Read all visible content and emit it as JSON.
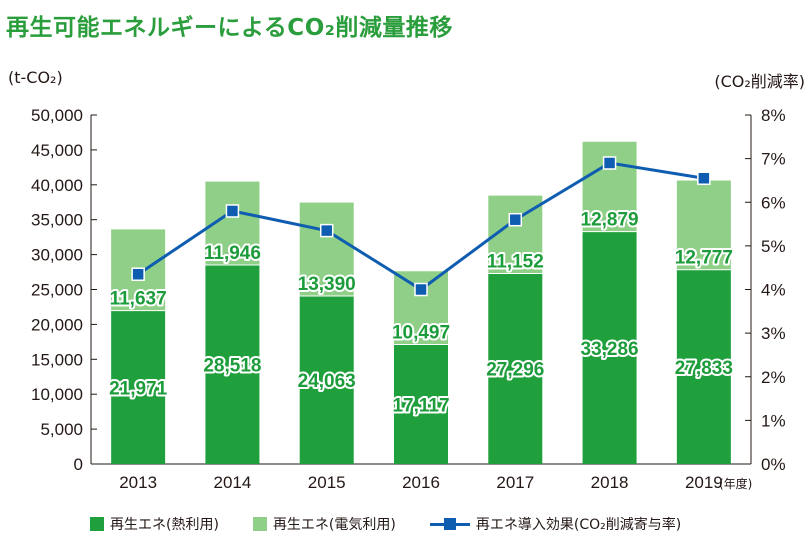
{
  "header": {
    "title": "再生可能エネルギーによるCO₂削減量推移",
    "left_unit": "(t-CO₂)",
    "right_unit": "(CO₂削減率)"
  },
  "colors": {
    "title": "#2a9d3c",
    "thermal": "#1fa03c",
    "electric": "#8fcf87",
    "line": "#0f5db0"
  },
  "chart_data": {
    "type": "bar",
    "stacked": true,
    "categories": [
      "2013",
      "2014",
      "2015",
      "2016",
      "2017",
      "2018",
      "2019"
    ],
    "x_suffix": "(年度)",
    "ylim": [
      0,
      50000
    ],
    "y_ticks": [
      "0",
      "5,000",
      "10,000",
      "15,000",
      "20,000",
      "25,000",
      "30,000",
      "35,000",
      "40,000",
      "45,000",
      "50,000"
    ],
    "y2lim": [
      0,
      8
    ],
    "y2_ticks": [
      "0%",
      "1%",
      "2%",
      "3%",
      "4%",
      "5%",
      "6%",
      "7%",
      "8%"
    ],
    "series": [
      {
        "name": "再生エネ(熱利用)",
        "kind": "bar",
        "values": [
          21971,
          28518,
          24063,
          17117,
          27296,
          33286,
          27833
        ],
        "labels": [
          "21,971",
          "28,518",
          "24,063",
          "17,117",
          "27,296",
          "33,286",
          "27,833"
        ]
      },
      {
        "name": "再生エネ(電気利用)",
        "kind": "bar",
        "values": [
          11637,
          11946,
          13390,
          10497,
          11152,
          12879,
          12777
        ],
        "labels": [
          "11,637",
          "11,946",
          "13,390",
          "10,497",
          "11,152",
          "12,879",
          "12,777"
        ]
      },
      {
        "name": "再エネ導入効果(CO₂削減寄与率)",
        "kind": "line",
        "axis": "right",
        "values": [
          4.35,
          5.8,
          5.35,
          4.0,
          5.6,
          6.9,
          6.55
        ]
      }
    ],
    "grid": false,
    "legend_position": "bottom"
  }
}
